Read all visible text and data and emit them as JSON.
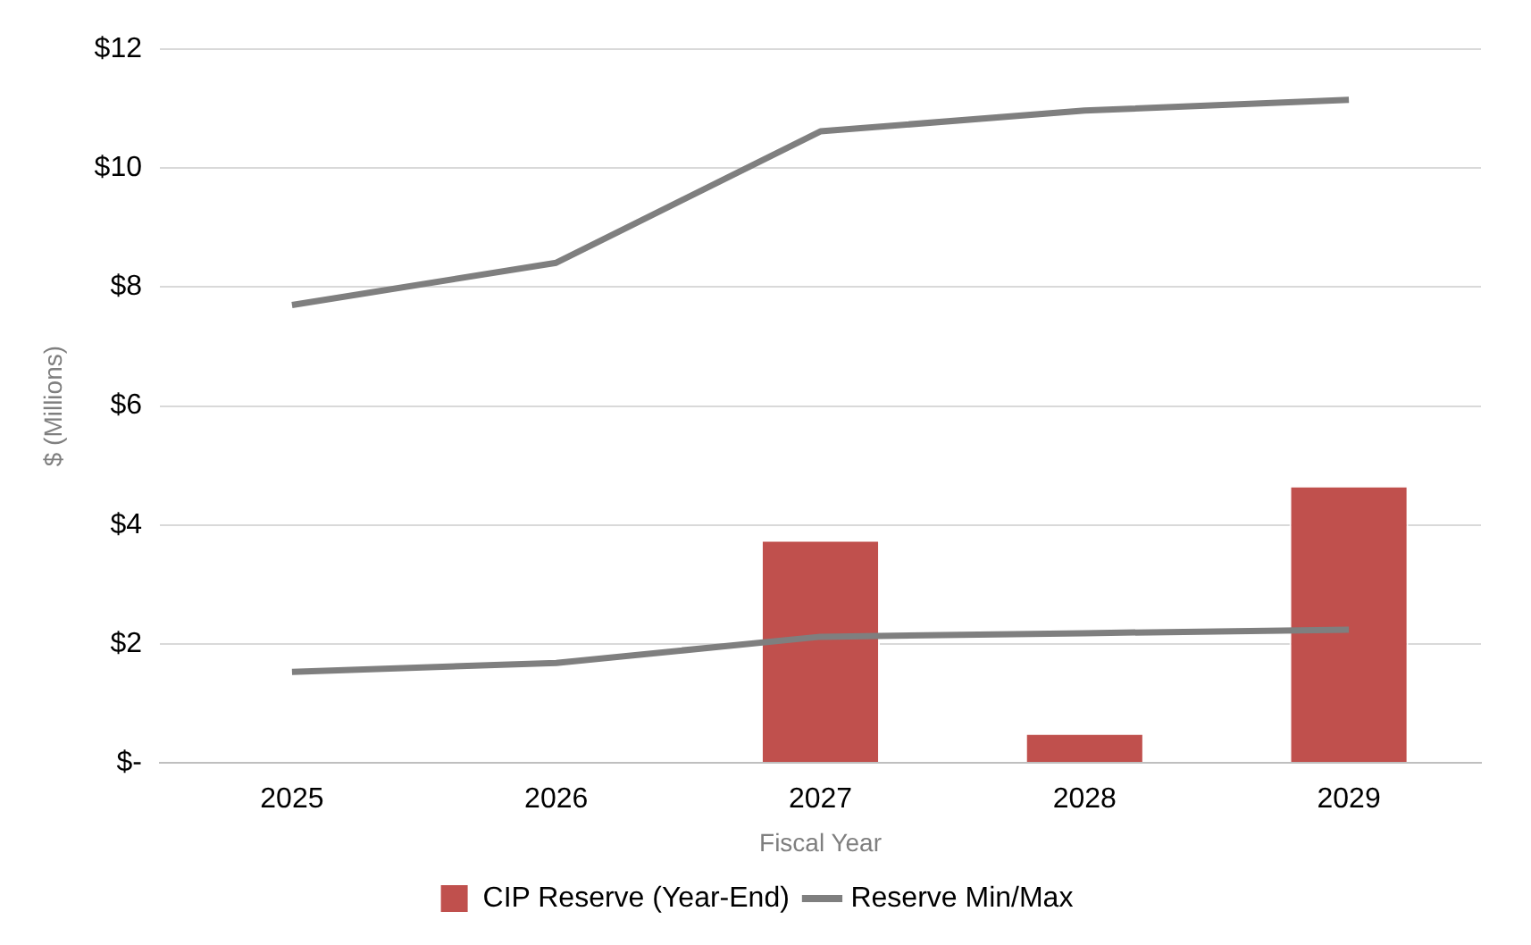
{
  "chart_data": {
    "type": "bar",
    "xlabel": "Fiscal Year",
    "ylabel": "$ (Millions)",
    "categories": [
      "2025",
      "2026",
      "2027",
      "2028",
      "2029"
    ],
    "series": [
      {
        "name": "CIP Reserve (Year-End)",
        "color": "#c0504d",
        "values": [
          null,
          null,
          3.75,
          0.5,
          4.66
        ]
      },
      {
        "name": "Reserve Min/Max",
        "type": "line",
        "color": "#7f7f7f",
        "values": [
          7.7,
          8.41,
          10.62,
          10.97,
          11.15
        ]
      },
      {
        "type": "line",
        "color": "#7f7f7f",
        "values": [
          1.53,
          1.68,
          2.12,
          2.18,
          2.24
        ]
      }
    ],
    "ylim": [
      0,
      12
    ],
    "yticks": [
      {
        "value": 0,
        "label": "$-"
      },
      {
        "value": 2,
        "label": "$2"
      },
      {
        "value": 4,
        "label": "$4"
      },
      {
        "value": 6,
        "label": "$6"
      },
      {
        "value": 8,
        "label": "$8"
      },
      {
        "value": 10,
        "label": "$10"
      },
      {
        "value": 12,
        "label": "$12"
      }
    ],
    "grid": "y",
    "legend": "bottom",
    "marker": "none",
    "line_style": "solid"
  }
}
